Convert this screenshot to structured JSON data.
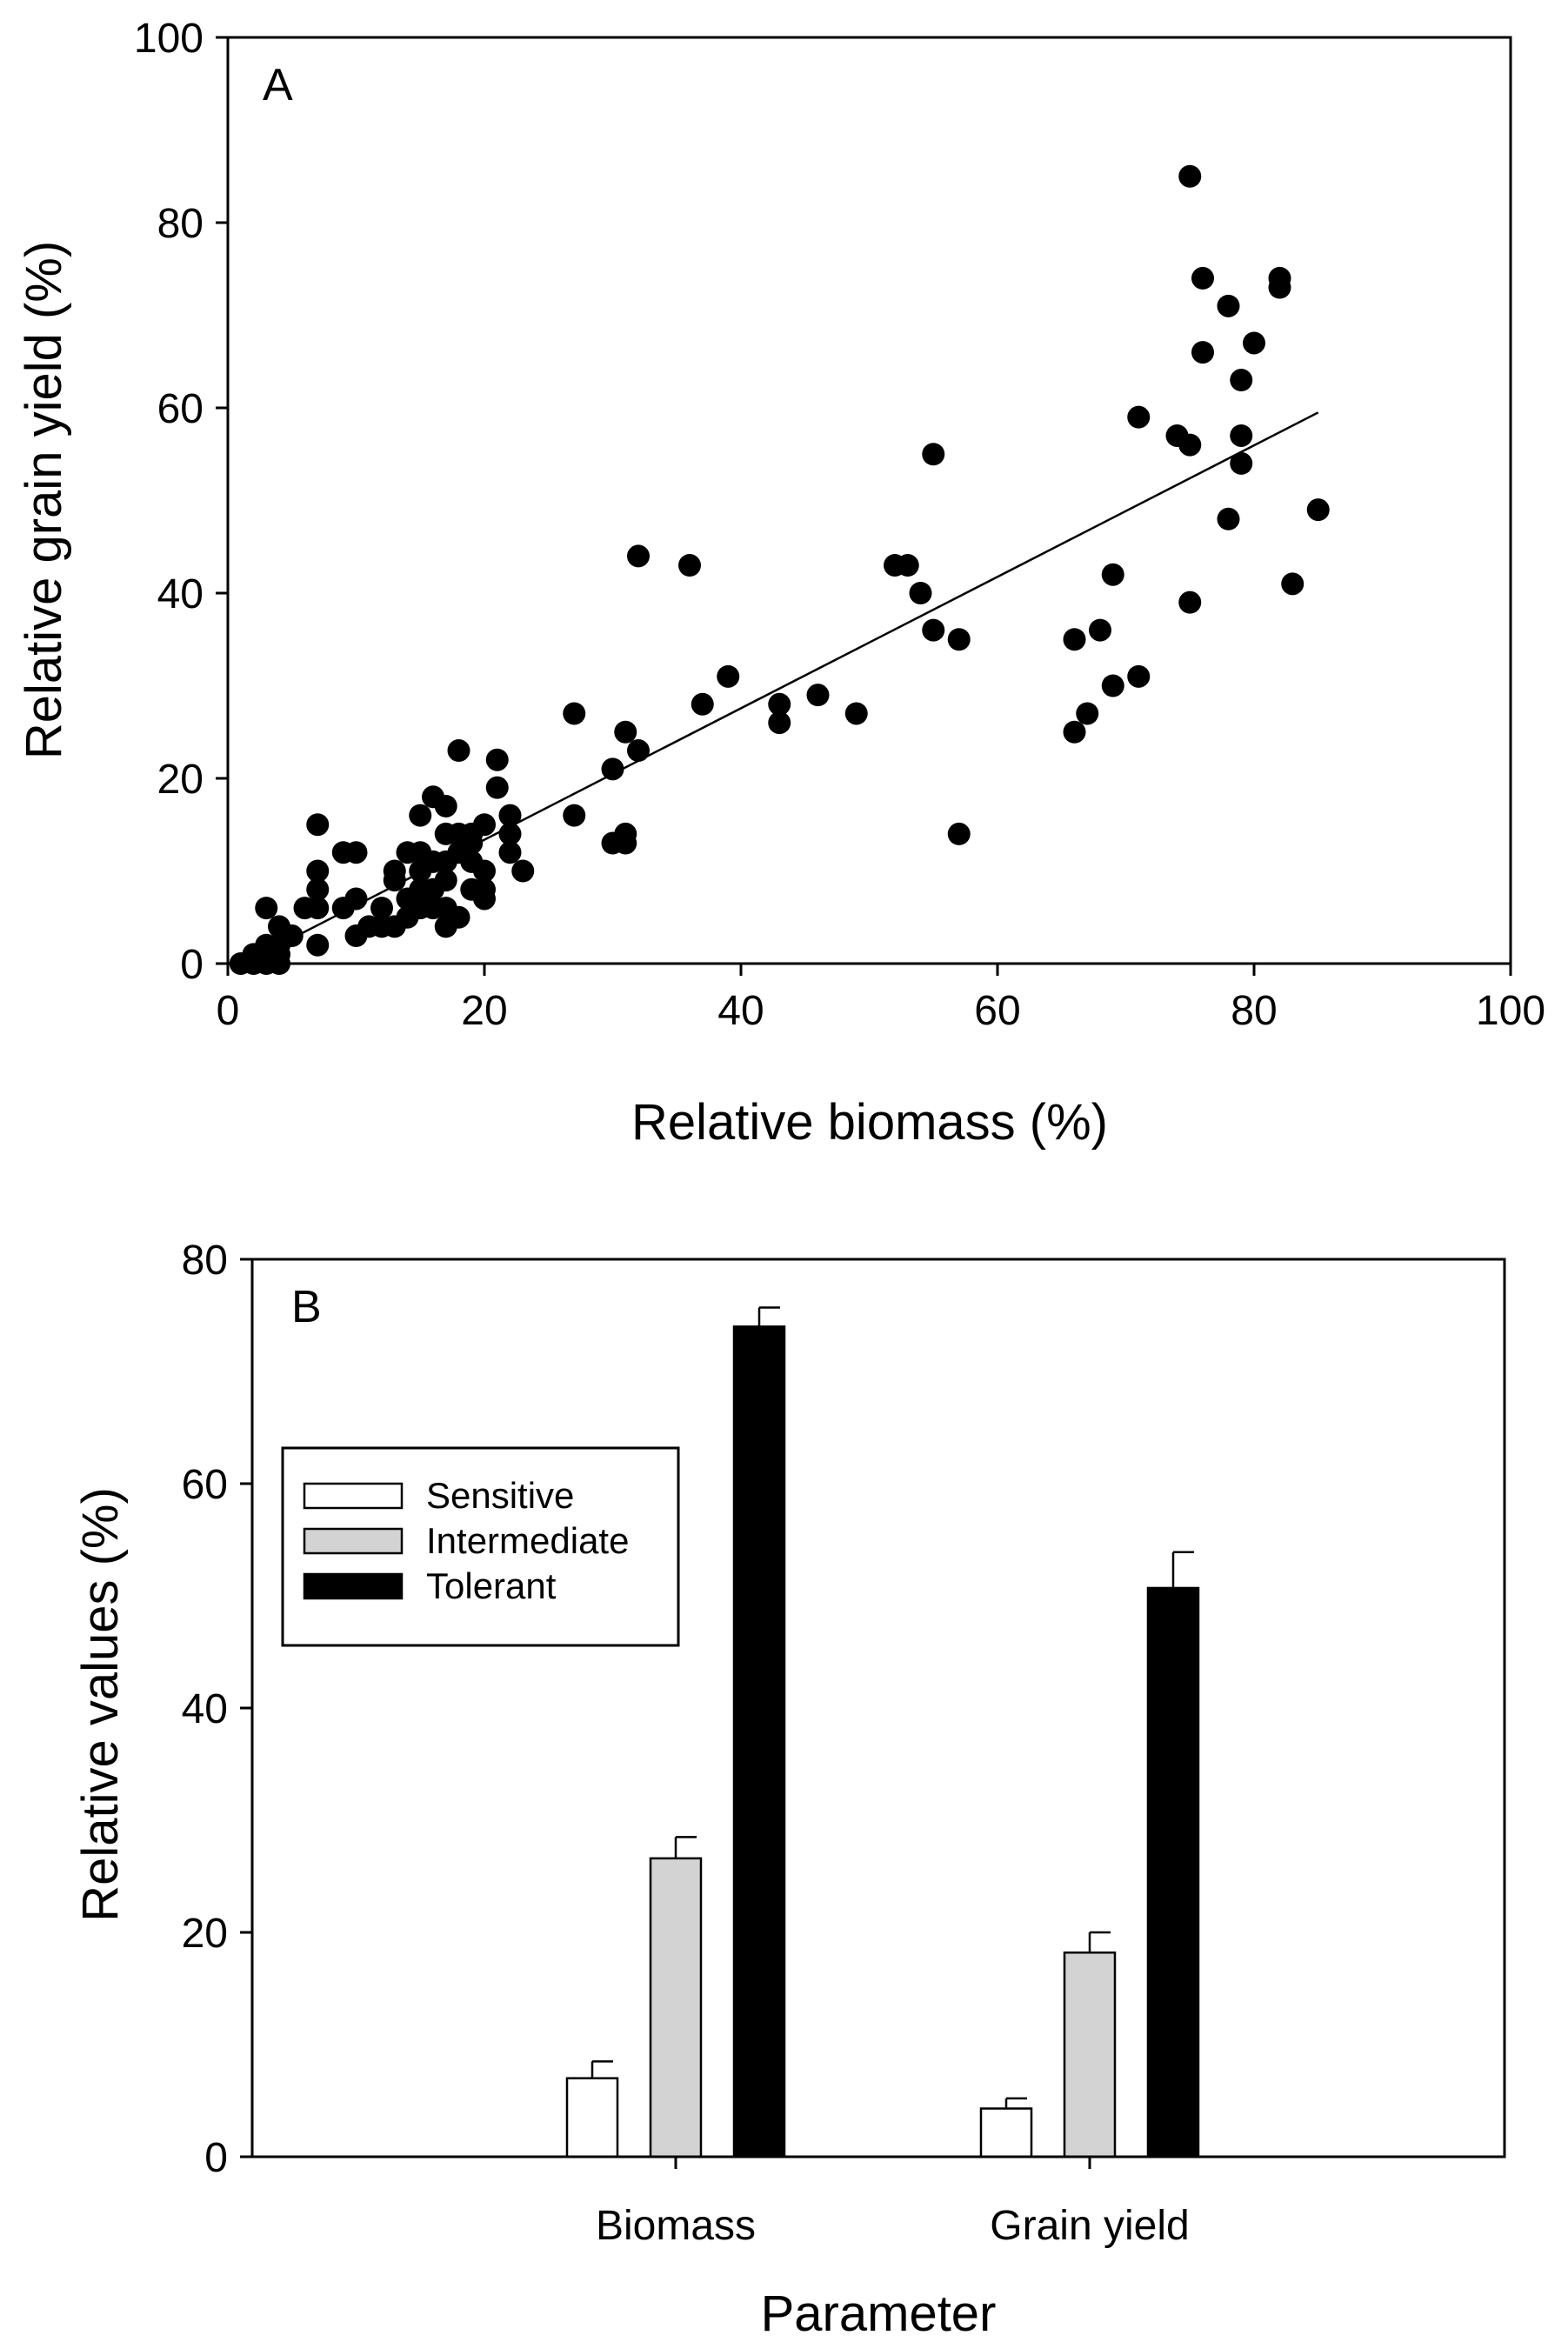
{
  "chart_data": [
    {
      "type": "scatter",
      "panel_label": "A",
      "xlabel": "Relative biomass (%)",
      "ylabel": "Relative grain yield (%)",
      "xlim": [
        0,
        100
      ],
      "ylim": [
        0,
        100
      ],
      "xticks": [
        "0",
        "20",
        "40",
        "60",
        "80",
        "100"
      ],
      "yticks": [
        "0",
        "20",
        "40",
        "60",
        "80",
        "100"
      ],
      "grid": false,
      "points": [
        [
          1,
          0
        ],
        [
          2,
          0
        ],
        [
          2,
          1
        ],
        [
          3,
          0
        ],
        [
          3,
          1
        ],
        [
          3,
          2
        ],
        [
          3,
          6
        ],
        [
          4,
          0
        ],
        [
          4,
          1
        ],
        [
          4,
          2
        ],
        [
          4,
          4
        ],
        [
          5,
          3
        ],
        [
          6,
          6
        ],
        [
          7,
          2
        ],
        [
          7,
          6
        ],
        [
          7,
          8
        ],
        [
          7,
          10
        ],
        [
          7,
          15
        ],
        [
          9,
          6
        ],
        [
          9,
          12
        ],
        [
          10,
          3
        ],
        [
          10,
          7
        ],
        [
          10,
          12
        ],
        [
          11,
          4
        ],
        [
          12,
          4
        ],
        [
          12,
          6
        ],
        [
          13,
          4
        ],
        [
          13,
          9
        ],
        [
          13,
          10
        ],
        [
          14,
          5
        ],
        [
          14,
          7
        ],
        [
          14,
          12
        ],
        [
          15,
          6
        ],
        [
          15,
          8
        ],
        [
          15,
          10
        ],
        [
          15,
          12
        ],
        [
          15,
          16
        ],
        [
          16,
          6
        ],
        [
          16,
          8
        ],
        [
          16,
          11
        ],
        [
          16,
          18
        ],
        [
          17,
          4
        ],
        [
          17,
          6
        ],
        [
          17,
          9
        ],
        [
          17,
          11
        ],
        [
          17,
          14
        ],
        [
          17,
          17
        ],
        [
          18,
          5
        ],
        [
          18,
          12
        ],
        [
          18,
          14
        ],
        [
          18,
          23
        ],
        [
          19,
          8
        ],
        [
          19,
          11
        ],
        [
          19,
          13
        ],
        [
          19,
          14
        ],
        [
          20,
          7
        ],
        [
          20,
          8
        ],
        [
          20,
          10
        ],
        [
          20,
          15
        ],
        [
          21,
          19
        ],
        [
          21,
          22
        ],
        [
          22,
          12
        ],
        [
          22,
          14
        ],
        [
          22,
          16
        ],
        [
          23,
          10
        ],
        [
          27,
          16
        ],
        [
          27,
          27
        ],
        [
          30,
          13
        ],
        [
          30,
          21
        ],
        [
          31,
          13
        ],
        [
          31,
          14
        ],
        [
          31,
          25
        ],
        [
          32,
          23
        ],
        [
          32,
          44
        ],
        [
          36,
          43
        ],
        [
          37,
          28
        ],
        [
          39,
          31
        ],
        [
          43,
          26
        ],
        [
          43,
          28
        ],
        [
          46,
          29
        ],
        [
          49,
          27
        ],
        [
          52,
          43
        ],
        [
          53,
          43
        ],
        [
          54,
          40
        ],
        [
          55,
          36
        ],
        [
          55,
          55
        ],
        [
          57,
          14
        ],
        [
          57,
          35
        ],
        [
          66,
          25
        ],
        [
          66,
          35
        ],
        [
          67,
          27
        ],
        [
          68,
          36
        ],
        [
          69,
          30
        ],
        [
          69,
          42
        ],
        [
          71,
          31
        ],
        [
          71,
          59
        ],
        [
          74,
          57
        ],
        [
          75,
          39
        ],
        [
          75,
          56
        ],
        [
          75,
          85
        ],
        [
          76,
          66
        ],
        [
          76,
          74
        ],
        [
          78,
          48
        ],
        [
          78,
          71
        ],
        [
          79,
          54
        ],
        [
          79,
          57
        ],
        [
          79,
          63
        ],
        [
          80,
          67
        ],
        [
          82,
          73
        ],
        [
          82,
          74
        ],
        [
          83,
          41
        ],
        [
          85,
          49
        ]
      ],
      "regression_line": {
        "x": [
          2,
          85
        ],
        "y": [
          0.6,
          59.5
        ]
      }
    },
    {
      "type": "bar",
      "panel_label": "B",
      "xlabel": "Parameter",
      "ylabel": "Relative values (%)",
      "ylim": [
        0,
        80
      ],
      "yticks": [
        "0",
        "20",
        "40",
        "60",
        "80"
      ],
      "categories": [
        "Biomass",
        "Grain yield"
      ],
      "series": [
        {
          "name": "Sensitive",
          "color": "#ffffff",
          "values": [
            7.0,
            4.3
          ],
          "errors": [
            1.5,
            0.9
          ]
        },
        {
          "name": "Intermediate",
          "color": "#d3d3d3",
          "values": [
            26.6,
            18.2
          ],
          "errors": [
            1.9,
            1.8
          ]
        },
        {
          "name": "Tolerant",
          "color": "#000000",
          "values": [
            74.0,
            50.7
          ],
          "errors": [
            1.7,
            3.2
          ]
        }
      ],
      "legend_position": "upper-left",
      "grid": false
    }
  ]
}
